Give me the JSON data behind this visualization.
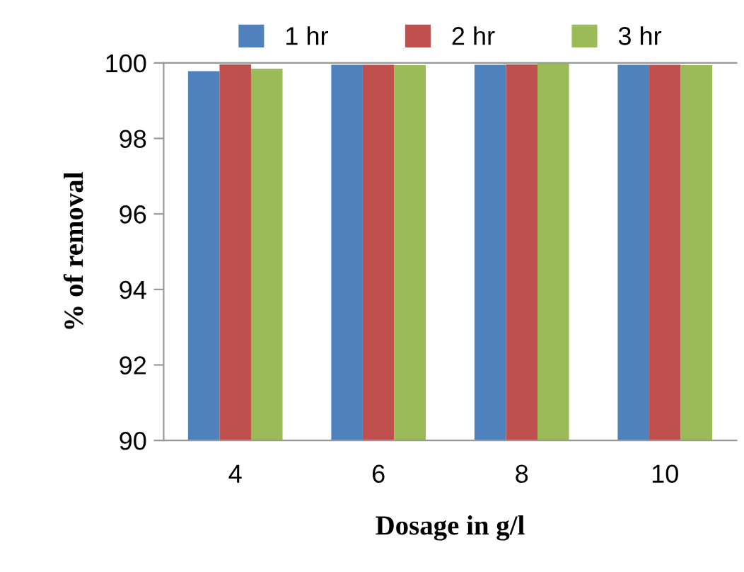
{
  "chart_data": {
    "type": "bar",
    "xlabel": "Dosage in g/l",
    "ylabel": "% of removal",
    "categories": [
      "4",
      "6",
      "8",
      "10"
    ],
    "series": [
      {
        "name": "1 hr",
        "color": "#4f81bd",
        "values": [
          99.78,
          99.95,
          99.95,
          99.95
        ]
      },
      {
        "name": "2 hr",
        "color": "#c0504d",
        "values": [
          99.96,
          99.95,
          99.96,
          99.95
        ]
      },
      {
        "name": "3 hr",
        "color": "#9bbb59",
        "values": [
          99.85,
          99.94,
          99.99,
          99.94
        ]
      }
    ],
    "ylim": [
      90,
      100
    ],
    "yticks": [
      90,
      92,
      94,
      96,
      98,
      100
    ],
    "grid": false,
    "legend": "top"
  }
}
